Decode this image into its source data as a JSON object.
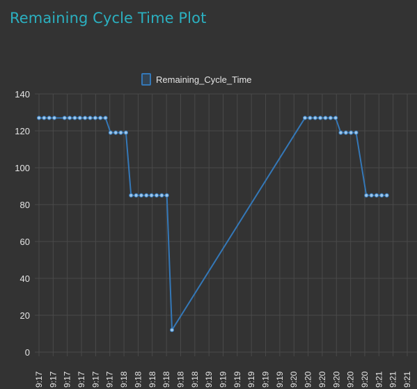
{
  "panel": {
    "title": "Remaining Cycle Time Plot"
  },
  "colors": {
    "background": "#333333",
    "title": "#2bb0c0",
    "series_line": "#3478b8",
    "point_fill": "#9fc6e8",
    "grid": "#4a4a4a",
    "text": "#e6e6e6"
  },
  "chart_data": {
    "type": "line",
    "legend": "top",
    "grid": true,
    "ylim": [
      0,
      140
    ],
    "y_ticks": [
      0,
      20,
      40,
      60,
      80,
      100,
      120,
      140
    ],
    "x_tick_labels": [
      "9:17",
      "9:17",
      "9:17",
      "9:17",
      "9:17",
      "9:17",
      "9:18",
      "9:18",
      "9:18",
      "9:18",
      "9:18",
      "9:18",
      "9:19",
      "9:19",
      "9:19",
      "9:19",
      "9:19",
      "9:19",
      "9:20",
      "9:20",
      "9:20",
      "9:20",
      "9:20",
      "9:20",
      "9:21",
      "9:21",
      "9:21"
    ],
    "series": [
      {
        "name": "Remaining_Cycle_Time",
        "values": [
          127,
          127,
          127,
          127,
          127,
          127,
          127,
          127,
          127,
          127,
          127,
          127,
          127,
          119,
          119,
          119,
          119,
          85,
          85,
          85,
          85,
          85,
          85,
          85,
          85,
          12,
          127,
          127,
          127,
          127,
          127,
          127,
          127,
          119,
          119,
          119,
          119,
          85,
          85,
          85,
          85,
          85
        ],
        "point_x": [
          0,
          1,
          2,
          3,
          5,
          6,
          7,
          8,
          9,
          10,
          11,
          12,
          13,
          14,
          15,
          16,
          17,
          18,
          19,
          20,
          21,
          22,
          23,
          24,
          25,
          26,
          52,
          53,
          54,
          55,
          56,
          57,
          58,
          59,
          60,
          61,
          62,
          64,
          65,
          66,
          67,
          68
        ]
      }
    ]
  }
}
